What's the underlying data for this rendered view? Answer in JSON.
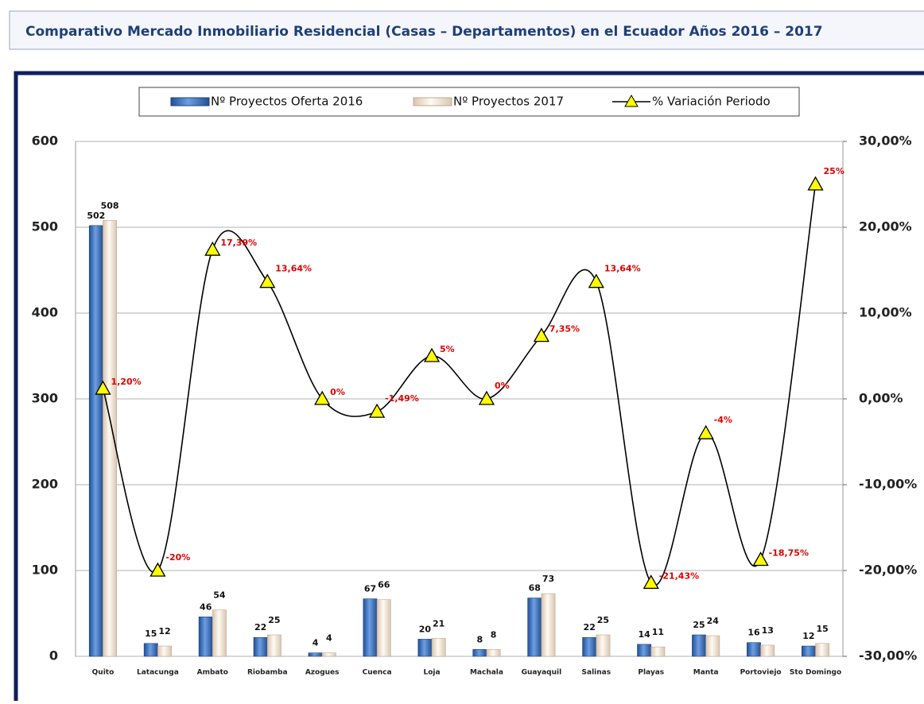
{
  "chart_data": {
    "type": "bar_line",
    "title": "Comparativo Mercado Inmobiliario Residencial (Casas – Departamentos) en el Ecuador Años 2016 – 2017",
    "categories": [
      "Quito",
      "Latacunga",
      "Ambato",
      "Riobamba",
      "Azogues",
      "Cuenca",
      "Loja",
      "Machala",
      "Guayaquil",
      "Salinas",
      "Playas",
      "Manta",
      "Portoviejo",
      "Sto Domingo"
    ],
    "series": [
      {
        "name": "Nº Proyectos Oferta 2016",
        "color": "#3a6fc0",
        "type": "bar",
        "values": [
          502,
          15,
          46,
          22,
          4,
          67,
          20,
          8,
          68,
          22,
          14,
          25,
          16,
          12
        ]
      },
      {
        "name": "Nº Proyectos 2017",
        "color": "#f3e6d6",
        "type": "bar",
        "values": [
          508,
          12,
          54,
          25,
          4,
          66,
          21,
          8,
          73,
          25,
          11,
          24,
          13,
          15
        ]
      },
      {
        "name": "% Variación Periodo",
        "color": "#000000",
        "marker_color": "#ffff00",
        "type": "line",
        "axis": "y2",
        "values": [
          1.2,
          -20,
          17.39,
          13.64,
          0,
          -1.49,
          5,
          0,
          7.35,
          13.64,
          -21.43,
          -4,
          -18.75,
          25
        ],
        "value_labels": [
          "1,20%",
          "-20%",
          "17,39%",
          "13,64%",
          "0%",
          "-1,49%",
          "5%",
          "0%",
          "7,35%",
          "13,64%",
          "-21,43%",
          "-4%",
          "-18,75%",
          "25%"
        ]
      }
    ],
    "ylim": [
      0,
      600
    ],
    "yticks": [
      0,
      100,
      200,
      300,
      400,
      500,
      600
    ],
    "y2lim": [
      -30,
      30
    ],
    "y2ticks": [
      {
        "value": -30,
        "label": "-30,00%"
      },
      {
        "value": -20,
        "label": "-20,00%"
      },
      {
        "value": -10,
        "label": "-10,00%"
      },
      {
        "value": 0,
        "label": "0,00%"
      },
      {
        "value": 10,
        "label": "10,00%"
      },
      {
        "value": 20,
        "label": "20,00%"
      },
      {
        "value": 30,
        "label": "30,00%"
      }
    ],
    "grid": true,
    "legend": "top"
  }
}
